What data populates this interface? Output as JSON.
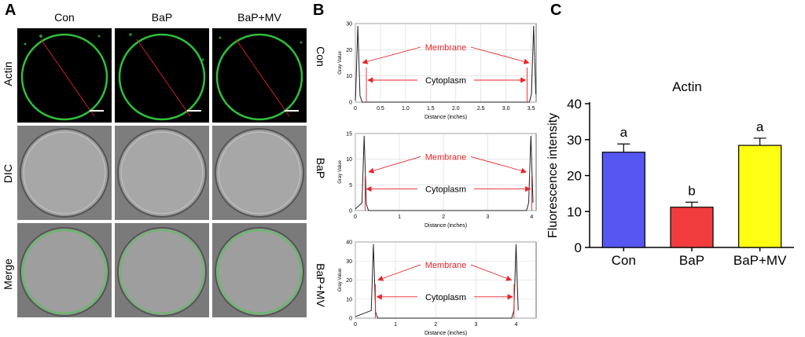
{
  "panel_a": {
    "letter": "A",
    "columns": [
      "Con",
      "BaP",
      "BaP+MV"
    ],
    "rows": [
      "Actin",
      "DIC",
      "Merge"
    ]
  },
  "panel_b": {
    "letter": "B",
    "profiles": [
      {
        "label": "Con",
        "ymax": 30,
        "yticks": [
          0,
          10,
          20,
          30
        ],
        "xmax": 3.6,
        "xticks": [
          "0",
          "0.5",
          "1.0",
          "1.5",
          "2.0",
          "2.5",
          "3.0",
          "3.5"
        ],
        "xtick_vals": [
          0,
          0.5,
          1.0,
          1.5,
          2.0,
          2.5,
          3.0,
          3.5
        ],
        "peaks": [
          0.05,
          3.55
        ],
        "inner": [
          0.22,
          3.42
        ]
      },
      {
        "label": "BaP",
        "ymax": 15,
        "yticks": [
          0,
          5,
          10,
          15
        ],
        "xmax": 4.1,
        "xticks": [
          "0",
          "1",
          "2",
          "3",
          "4"
        ],
        "xtick_vals": [
          0,
          1,
          2,
          3,
          4
        ],
        "peaks": [
          0.2,
          3.98
        ],
        "inner": [
          0.22,
          4.0
        ]
      },
      {
        "label": "BaP+MV",
        "ymax": 40,
        "yticks": [
          0,
          10,
          20,
          30,
          40
        ],
        "xmax": 4.5,
        "xticks": [
          "0",
          "1",
          "2",
          "3",
          "4"
        ],
        "xtick_vals": [
          0,
          1,
          2,
          3,
          4
        ],
        "peaks": [
          0.45,
          4.0
        ],
        "inner": [
          0.5,
          3.95
        ]
      }
    ],
    "axis_y_label": "Gray Value",
    "axis_x_label": "Distance (inches)",
    "membrane_label": "Membrane",
    "cytoplasm_label": "Cytoplasm",
    "annotation_color": "#e8252a"
  },
  "panel_c": {
    "letter": "C"
  },
  "chart_data": {
    "type": "bar",
    "title": "Actin",
    "categories": [
      "Con",
      "BaP",
      "BaP+MV"
    ],
    "values": [
      26.5,
      11.2,
      28.4
    ],
    "errors": [
      2.3,
      1.4,
      2.0
    ],
    "letters": [
      "a",
      "b",
      "a"
    ],
    "colors": [
      "#5656f0",
      "#f03c3c",
      "#ffff14"
    ],
    "ylabel": "Fluorescence intensity",
    "xlabel": "",
    "ylim": [
      0,
      40
    ],
    "yticks": [
      0,
      10,
      20,
      30,
      40
    ],
    "grid": false
  }
}
